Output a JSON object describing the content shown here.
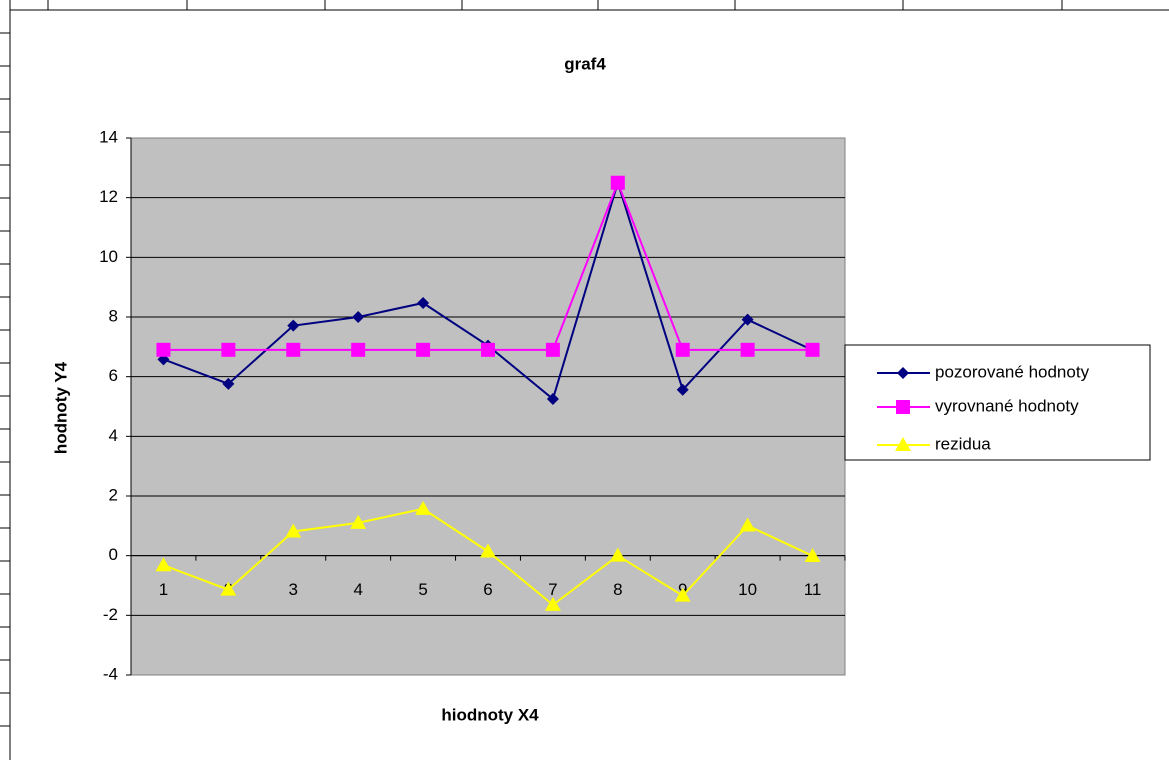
{
  "chart_data": {
    "type": "line",
    "title": "graf4",
    "x_label": "hiodnoty X4",
    "y_label": "hodnoty Y4",
    "categories": [
      "1",
      "2",
      "3",
      "4",
      "5",
      "6",
      "7",
      "8",
      "9",
      "10",
      "11"
    ],
    "series": [
      {
        "name": "pozorované hodnoty",
        "color": "#000080",
        "marker": "diamond",
        "values": [
          6.58,
          5.76,
          7.71,
          8.0,
          8.47,
          7.04,
          5.25,
          12.5,
          5.56,
          7.91,
          6.89
        ]
      },
      {
        "name": "vyrovnané hodnoty",
        "color": "#ff00ff",
        "marker": "square",
        "values": [
          6.9,
          6.9,
          6.9,
          6.9,
          6.9,
          6.9,
          6.9,
          12.5,
          6.9,
          6.9,
          6.9
        ]
      },
      {
        "name": "rezidua",
        "color": "#ffff00",
        "marker": "triangle",
        "values": [
          -0.32,
          -1.14,
          0.81,
          1.1,
          1.57,
          0.14,
          -1.65,
          0,
          -1.34,
          1.01,
          -0.01
        ]
      }
    ],
    "ylim": [
      -4,
      14
    ],
    "yticks": [
      -4,
      -2,
      0,
      2,
      4,
      6,
      8,
      10,
      12,
      14
    ],
    "grid": true,
    "legend": "right"
  }
}
